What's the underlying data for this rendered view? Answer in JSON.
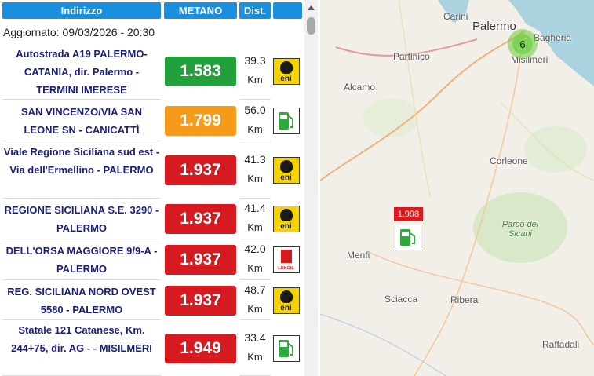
{
  "header": {
    "columns": [
      "Indirizzo",
      "METANO",
      "Dist."
    ]
  },
  "updated": "Aggiornato: 09/03/2026 - 20:30",
  "rows": [
    {
      "address": "Autostrada A19 PALERMO-CATANIA, dir. Palermo - TERMINI IMERESE",
      "price": "1.583",
      "color": "#22a03c",
      "distance": "39.3",
      "unit": "Km",
      "logo": {
        "text": "eni",
        "color": "#f5d300"
      }
    },
    {
      "address": "SAN VINCENZO/VIA SAN LEONE SN - CANICATTÌ",
      "price": "1.799",
      "color": "#f59a1a",
      "distance": "56.0",
      "unit": "Km",
      "logo": {
        "color": "#ffffff"
      }
    },
    {
      "address": "Viale Regione Siciliana sud est - Via dell'Ermellino - PALERMO",
      "price": "1.937",
      "color": "#d71920",
      "distance": "41.3",
      "unit": "Km",
      "logo": {
        "text": "eni",
        "color": "#f5d300"
      }
    },
    {
      "address": "REGIONE SICILIANA S.E. 3290 - PALERMO",
      "price": "1.937",
      "color": "#d71920",
      "distance": "41.4",
      "unit": "Km",
      "logo": {
        "text": "eni",
        "color": "#f5d300"
      }
    },
    {
      "address": "DELL'ORSA MAGGIORE 9/9-A - PALERMO",
      "price": "1.937",
      "color": "#d71920",
      "distance": "42.0",
      "unit": "Km",
      "logo": {
        "text": "LUKOIL",
        "color": "#ffffff"
      }
    },
    {
      "address": "REG. SICILIANA NORD OVEST 5580 - PALERMO",
      "price": "1.937",
      "color": "#d71920",
      "distance": "48.7",
      "unit": "Km",
      "logo": {
        "text": "eni",
        "color": "#f5d300"
      }
    },
    {
      "address": "Statale 121 Catanese, Km. 244+75, dir. AG - - MISILMERI",
      "price": "1.949",
      "color": "#d71920",
      "distance": "33.4",
      "unit": "Km",
      "logo": {
        "color": "#ffffff"
      }
    }
  ],
  "map": {
    "places": [
      "Carini",
      "Palermo",
      "Bagheria",
      "Partinico",
      "Misilmeri",
      "Alcamo",
      "Corleone",
      "Parco dei Sicani",
      "Menfi",
      "Sciacca",
      "Ribera",
      "Raffadali"
    ],
    "cluster": {
      "count": "6"
    },
    "marker": {
      "price": "1.998"
    }
  }
}
